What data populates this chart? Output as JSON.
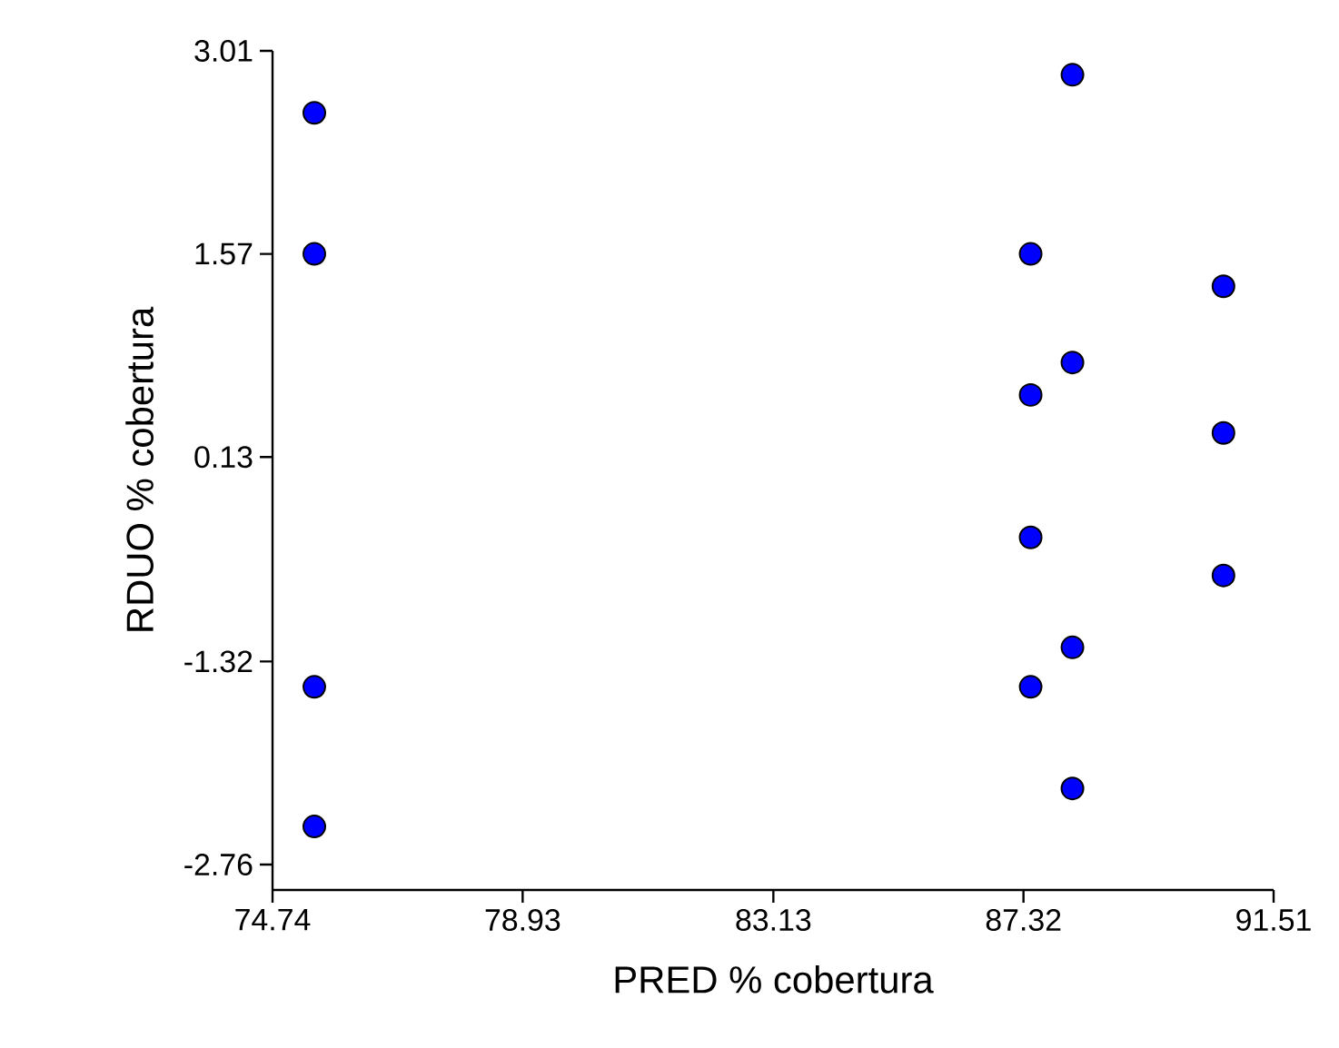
{
  "chart_data": {
    "type": "scatter",
    "xlabel": "PRED % cobertura",
    "ylabel": "RDUO % cobertura",
    "x": [
      75.44,
      75.44,
      75.44,
      75.44,
      87.44,
      87.44,
      87.44,
      87.44,
      88.14,
      88.14,
      88.14,
      88.14,
      90.67,
      90.67,
      90.67
    ],
    "values": [
      2.57,
      1.57,
      -1.5,
      -2.49,
      1.57,
      0.57,
      -0.44,
      -1.5,
      2.84,
      0.8,
      -1.22,
      -2.22,
      1.34,
      0.3,
      -0.71
    ],
    "color": "#0000ff",
    "marker": "circle",
    "xlim": [
      74.74,
      91.51
    ],
    "xticks": [
      74.74,
      78.93,
      83.13,
      87.32,
      91.51
    ],
    "ylim": [
      -2.94,
      3.01
    ],
    "yticks": [
      -2.76,
      -1.32,
      0.13,
      1.57,
      3.01
    ]
  }
}
